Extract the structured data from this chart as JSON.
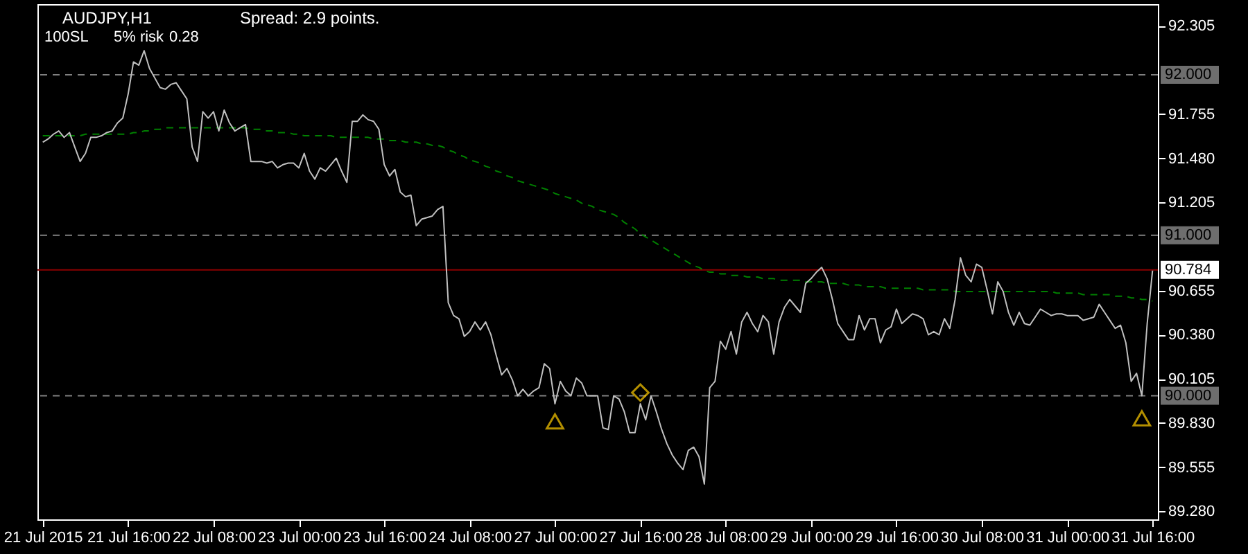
{
  "chart_data": {
    "type": "line",
    "title": "AUDJPY,H1",
    "annotations": [
      "Spread: 2.9 points.",
      "100SL",
      "5% risk",
      "0.28"
    ],
    "categories": [
      "21 Jul 2015",
      null,
      null,
      null,
      null,
      null,
      null,
      null,
      null,
      null,
      null,
      null,
      null,
      null,
      null,
      null,
      "21 Jul 16:00",
      null,
      null,
      null,
      null,
      null,
      null,
      null,
      null,
      null,
      null,
      null,
      null,
      null,
      null,
      null,
      "22 Jul 08:00",
      null,
      null,
      null,
      null,
      null,
      null,
      null,
      null,
      null,
      null,
      null,
      null,
      null,
      null,
      null,
      "23 Jul 00:00",
      null,
      null,
      null,
      null,
      null,
      null,
      null,
      null,
      null,
      null,
      null,
      null,
      null,
      null,
      null,
      "23 Jul 16:00",
      null,
      null,
      null,
      null,
      null,
      null,
      null,
      null,
      null,
      null,
      null,
      null,
      null,
      null,
      null,
      "24 Jul 08:00",
      null,
      null,
      null,
      null,
      null,
      null,
      null,
      null,
      null,
      null,
      null,
      null,
      null,
      null,
      null,
      "27 Jul 00:00",
      null,
      null,
      null,
      null,
      null,
      null,
      null,
      null,
      null,
      null,
      null,
      null,
      null,
      null,
      null,
      "27 Jul 16:00",
      null,
      null,
      null,
      null,
      null,
      null,
      null,
      null,
      null,
      null,
      null,
      null,
      null,
      null,
      null,
      "28 Jul 08:00",
      null,
      null,
      null,
      null,
      null,
      null,
      null,
      null,
      null,
      null,
      null,
      null,
      null,
      null,
      null,
      "29 Jul 00:00",
      null,
      null,
      null,
      null,
      null,
      null,
      null,
      null,
      null,
      null,
      null,
      null,
      null,
      null,
      null,
      "29 Jul 16:00",
      null,
      null,
      null,
      null,
      null,
      null,
      null,
      null,
      null,
      null,
      null,
      null,
      null,
      null,
      null,
      "30 Jul 08:00",
      null,
      null,
      null,
      null,
      null,
      null,
      null,
      null,
      null,
      null,
      null,
      null,
      null,
      null,
      null,
      "31 Jul 00:00",
      null,
      null,
      null,
      null,
      null,
      null,
      null,
      null,
      null,
      null,
      null,
      null,
      null,
      null,
      null,
      "31 Jul 16:00"
    ],
    "ylim": [
      89.23,
      92.44
    ],
    "yticks": [
      {
        "value": 92.305,
        "label": "92.305"
      },
      {
        "value": 91.755,
        "label": "91.755"
      },
      {
        "value": 91.48,
        "label": "91.480"
      },
      {
        "value": 91.205,
        "label": "91.205"
      },
      {
        "value": 90.655,
        "label": "90.655"
      },
      {
        "value": 90.38,
        "label": "90.380"
      },
      {
        "value": 90.105,
        "label": "90.105"
      },
      {
        "value": 89.83,
        "label": "89.830"
      },
      {
        "value": 89.555,
        "label": "89.555"
      },
      {
        "value": 89.28,
        "label": "89.280"
      }
    ],
    "ref_lines": [
      {
        "axis": "y",
        "value": 92,
        "label": "92.000",
        "color": "#808080",
        "line_style": "dashed"
      },
      {
        "axis": "y",
        "value": 91,
        "label": "91.000",
        "color": "#808080",
        "line_style": "dashed"
      },
      {
        "axis": "y",
        "value": 90,
        "label": "90.000",
        "color": "#808080",
        "line_style": "dashed"
      },
      {
        "axis": "y",
        "value": 90.784,
        "label": "90.784",
        "color": "#8b0000",
        "line_style": "solid"
      }
    ],
    "series": [
      {
        "type": "line",
        "color": "#008000",
        "line_style": "dashed",
        "values": [
          91.62,
          91.62,
          91.62,
          91.62,
          91.62,
          91.62,
          91.62,
          91.62,
          91.63,
          91.63,
          91.63,
          91.63,
          91.63,
          91.63,
          91.63,
          91.63,
          91.63,
          91.64,
          91.64,
          91.65,
          91.65,
          91.66,
          91.66,
          91.67,
          91.67,
          91.67,
          91.67,
          91.67,
          91.67,
          91.67,
          91.67,
          91.67,
          91.67,
          91.67,
          91.67,
          91.67,
          91.67,
          91.67,
          91.67,
          91.66,
          91.66,
          91.66,
          91.65,
          91.65,
          91.64,
          91.64,
          91.64,
          91.63,
          91.63,
          91.62,
          91.62,
          91.62,
          91.62,
          91.62,
          91.62,
          91.61,
          91.61,
          91.61,
          91.61,
          91.61,
          91.61,
          91.61,
          91.6,
          91.6,
          91.6,
          91.59,
          91.59,
          91.59,
          91.58,
          91.58,
          91.58,
          91.57,
          91.57,
          91.56,
          91.56,
          91.55,
          91.53,
          91.52,
          91.5,
          91.49,
          91.47,
          91.46,
          91.45,
          91.43,
          91.42,
          91.4,
          91.39,
          91.37,
          91.36,
          91.34,
          91.33,
          91.32,
          91.31,
          91.3,
          91.29,
          91.28,
          91.26,
          91.25,
          91.24,
          91.23,
          91.22,
          91.2,
          91.19,
          91.18,
          91.16,
          91.15,
          91.14,
          91.13,
          91.11,
          91.08,
          91.06,
          91.04,
          91.01,
          90.99,
          90.97,
          90.95,
          90.93,
          90.91,
          90.89,
          90.87,
          90.85,
          90.83,
          90.81,
          90.8,
          90.78,
          90.77,
          90.77,
          90.76,
          90.76,
          90.75,
          90.75,
          90.75,
          90.74,
          90.74,
          90.74,
          90.73,
          90.73,
          90.73,
          90.72,
          90.72,
          90.72,
          90.72,
          90.72,
          90.71,
          90.71,
          90.71,
          90.71,
          90.7,
          90.7,
          90.7,
          90.7,
          90.69,
          90.69,
          90.69,
          90.68,
          90.68,
          90.68,
          90.68,
          90.67,
          90.67,
          90.67,
          90.67,
          90.67,
          90.67,
          90.67,
          90.66,
          90.66,
          90.66,
          90.66,
          90.66,
          90.66,
          90.65,
          90.65,
          90.65,
          90.65,
          90.65,
          90.65,
          90.65,
          90.65,
          90.65,
          90.65,
          90.65,
          90.65,
          90.65,
          90.65,
          90.65,
          90.65,
          90.65,
          90.65,
          90.65,
          90.64,
          90.64,
          90.64,
          90.64,
          90.64,
          90.63,
          90.63,
          90.63,
          90.63,
          90.63,
          90.63,
          90.62,
          90.62,
          90.62,
          90.61,
          90.61,
          90.6,
          90.6,
          90.59
        ]
      },
      {
        "type": "line",
        "color": "#c0c0c0",
        "line_style": "solid",
        "values": [
          91.58,
          91.6,
          91.63,
          91.65,
          91.61,
          91.64,
          91.55,
          91.46,
          91.51,
          91.61,
          91.61,
          91.62,
          91.64,
          91.65,
          91.7,
          91.73,
          91.88,
          92.08,
          92.06,
          92.15,
          92.04,
          91.98,
          91.92,
          91.91,
          91.94,
          91.95,
          91.9,
          91.85,
          91.55,
          91.46,
          91.77,
          91.73,
          91.77,
          91.65,
          91.78,
          91.7,
          91.65,
          91.67,
          91.69,
          91.46,
          91.46,
          91.46,
          91.45,
          91.46,
          91.42,
          91.44,
          91.45,
          91.45,
          91.42,
          91.51,
          91.4,
          91.35,
          91.42,
          91.4,
          91.44,
          91.48,
          91.4,
          91.33,
          91.71,
          91.71,
          91.75,
          91.72,
          91.71,
          91.66,
          91.44,
          91.37,
          91.41,
          91.27,
          91.24,
          91.25,
          91.06,
          91.1,
          91.11,
          91.12,
          91.16,
          91.18,
          90.58,
          90.5,
          90.48,
          90.37,
          90.4,
          90.46,
          90.41,
          90.46,
          90.38,
          90.25,
          90.13,
          90.17,
          90.1,
          90.0,
          90.04,
          90.0,
          90.03,
          90.05,
          90.2,
          90.17,
          89.95,
          90.09,
          90.03,
          90.0,
          90.11,
          90.08,
          90.0,
          90.0,
          90.0,
          89.8,
          89.79,
          90.0,
          89.98,
          89.9,
          89.77,
          89.77,
          89.95,
          89.85,
          90.0,
          89.9,
          89.79,
          89.7,
          89.63,
          89.58,
          89.54,
          89.66,
          89.68,
          89.62,
          89.45,
          90.05,
          90.09,
          90.34,
          90.29,
          90.4,
          90.26,
          90.46,
          90.52,
          90.45,
          90.4,
          90.5,
          90.46,
          90.26,
          90.46,
          90.55,
          90.6,
          90.56,
          90.52,
          90.7,
          90.73,
          90.77,
          90.8,
          90.73,
          90.6,
          90.45,
          90.4,
          90.35,
          90.35,
          90.5,
          90.41,
          90.48,
          90.48,
          90.33,
          90.41,
          90.43,
          90.54,
          90.45,
          90.48,
          90.51,
          90.5,
          90.48,
          90.38,
          90.4,
          90.38,
          90.48,
          90.42,
          90.6,
          90.86,
          90.75,
          90.71,
          90.82,
          90.8,
          90.66,
          90.51,
          90.71,
          90.65,
          90.52,
          90.44,
          90.52,
          90.45,
          90.44,
          90.49,
          90.54,
          90.52,
          90.5,
          90.51,
          90.51,
          90.5,
          90.5,
          90.5,
          90.47,
          90.48,
          90.49,
          90.57,
          90.52,
          90.47,
          90.42,
          90.44,
          90.33,
          90.09,
          90.14,
          90.0,
          90.45,
          90.78
        ]
      },
      {
        "type": "scatter",
        "color": "#ffcc00",
        "marker": "triangle",
        "values": [
          null,
          null,
          null,
          null,
          null,
          null,
          null,
          null,
          null,
          null,
          null,
          null,
          null,
          null,
          null,
          null,
          null,
          null,
          null,
          null,
          null,
          null,
          null,
          null,
          null,
          null,
          null,
          null,
          null,
          null,
          null,
          null,
          null,
          null,
          null,
          null,
          null,
          null,
          null,
          null,
          null,
          null,
          null,
          null,
          null,
          null,
          null,
          null,
          null,
          null,
          null,
          null,
          null,
          null,
          null,
          null,
          null,
          null,
          null,
          null,
          null,
          null,
          null,
          null,
          null,
          null,
          null,
          null,
          null,
          null,
          null,
          null,
          null,
          null,
          null,
          null,
          null,
          null,
          null,
          null,
          null,
          null,
          null,
          null,
          null,
          null,
          null,
          null,
          null,
          null,
          null,
          null,
          null,
          null,
          null,
          null,
          89.84,
          null,
          null,
          null,
          null,
          null,
          null,
          null,
          null,
          null,
          null,
          null,
          null,
          null,
          null,
          null,
          null,
          null,
          null,
          null,
          null,
          null,
          null,
          null,
          null,
          null,
          null,
          null,
          null,
          null,
          null,
          null,
          null,
          null,
          null,
          null,
          null,
          null,
          null,
          null,
          null,
          null,
          null,
          null,
          null,
          null,
          null,
          null,
          null,
          null,
          null,
          null,
          null,
          null,
          null,
          null,
          null,
          null,
          null,
          null,
          null,
          null,
          null,
          null,
          null,
          null,
          null,
          null,
          null,
          null,
          null,
          null,
          null,
          null,
          null,
          null,
          null,
          null,
          null,
          null,
          null,
          null,
          null,
          null,
          null,
          null,
          null,
          null,
          null,
          null,
          null,
          null,
          null,
          null,
          null,
          null,
          null,
          null,
          null,
          null,
          null,
          null,
          null,
          null,
          null,
          null,
          null,
          null,
          null,
          null,
          89.86,
          null,
          null
        ]
      },
      {
        "type": "scatter",
        "color": "#ffcc00",
        "marker": "diamond",
        "values": [
          null,
          null,
          null,
          null,
          null,
          null,
          null,
          null,
          null,
          null,
          null,
          null,
          null,
          null,
          null,
          null,
          null,
          null,
          null,
          null,
          null,
          null,
          null,
          null,
          null,
          null,
          null,
          null,
          null,
          null,
          null,
          null,
          null,
          null,
          null,
          null,
          null,
          null,
          null,
          null,
          null,
          null,
          null,
          null,
          null,
          null,
          null,
          null,
          null,
          null,
          null,
          null,
          null,
          null,
          null,
          null,
          null,
          null,
          null,
          null,
          null,
          null,
          null,
          null,
          null,
          null,
          null,
          null,
          null,
          null,
          null,
          null,
          null,
          null,
          null,
          null,
          null,
          null,
          null,
          null,
          null,
          null,
          null,
          null,
          null,
          null,
          null,
          null,
          null,
          null,
          null,
          null,
          null,
          null,
          null,
          null,
          null,
          null,
          null,
          null,
          null,
          null,
          null,
          null,
          null,
          null,
          null,
          null,
          null,
          null,
          null,
          null,
          90.02,
          null,
          null,
          null,
          null,
          null,
          null,
          null,
          null,
          null,
          null,
          null,
          null,
          null,
          null,
          null,
          null,
          null,
          null,
          null,
          null,
          null,
          null,
          null,
          null,
          null,
          null,
          null,
          null,
          null,
          null,
          null,
          null,
          null,
          null,
          null,
          null,
          null,
          null,
          null,
          null,
          null,
          null,
          null,
          null,
          null,
          null,
          null,
          null,
          null,
          null,
          null,
          null,
          null,
          null,
          null,
          null,
          null,
          null,
          null,
          null,
          null,
          null,
          null,
          null,
          null,
          null,
          null,
          null,
          null,
          null,
          null,
          null,
          null,
          null,
          null,
          null,
          null,
          null,
          null,
          null,
          null,
          null,
          null,
          null,
          null,
          null,
          null,
          null,
          null,
          null,
          null,
          null,
          null,
          null,
          null,
          null
        ]
      }
    ]
  }
}
